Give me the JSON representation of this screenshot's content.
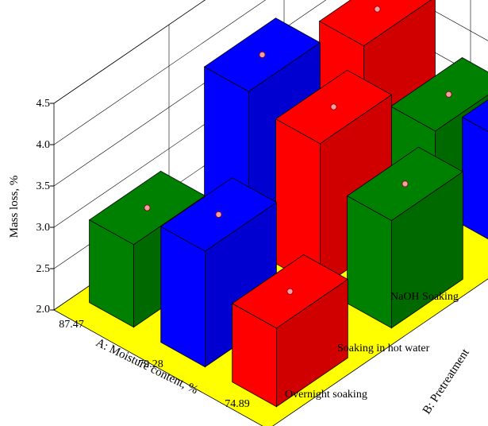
{
  "chart_data": {
    "type": "bar3d",
    "title": "",
    "zlabel": "Mass loss, %",
    "xlabel": "A: Moisture content, %",
    "ylabel": "B: Pretreatment",
    "zlim": [
      2.0,
      4.5
    ],
    "z_ticks": [
      "2.0",
      "2.5",
      "3.0",
      "3.5",
      "4.0",
      "4.5"
    ],
    "x_categories": [
      "87.47",
      "79.28",
      "74.89"
    ],
    "y_categories": [
      "Overnight soaking",
      "Soaking in hot water",
      "NaOH Soaking"
    ],
    "series": [
      {
        "name": "Overnight soaking",
        "color": "#008000",
        "values": [
          3.0,
          2.95,
          3.3
        ]
      },
      {
        "name": "Soaking in hot water",
        "color": "#0000ff",
        "values": [
          3.9,
          3.4,
          3.3
        ]
      },
      {
        "name": "NaOH Soaking",
        "color": "#ff0000",
        "values": [
          3.5,
          3.75,
          2.95
        ]
      }
    ],
    "points": [
      {
        "x": "87.47",
        "y": "Overnight soaking",
        "values": [
          3.0,
          2.95,
          3.3
        ]
      },
      {
        "x": "79.28",
        "y": "Soaking in hot water",
        "values": [
          3.9,
          3.4,
          3.3
        ]
      },
      {
        "x": "74.89",
        "y": "NaOH Soaking",
        "values": [
          3.5,
          3.75,
          2.95
        ]
      }
    ],
    "floor_color": "#ffff00",
    "grid": true
  }
}
